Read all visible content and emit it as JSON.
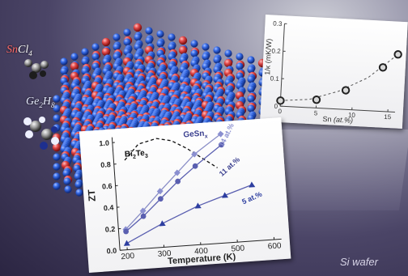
{
  "colors": {
    "si_atom": "#3469e6",
    "sn_atom": "#e24848",
    "zt_curve": "#5a5fb0",
    "bi2te3_curve": "#111111",
    "sncl4_text": "#ff6b6b",
    "ge2h8_text": "#e8ecff"
  },
  "precursors": {
    "sncl4": {
      "a": "Sn",
      "b": "Cl",
      "sub": "4"
    },
    "ge2h8": {
      "a": "Ge",
      "sub1": "2",
      "b": "H",
      "sub2": "8"
    }
  },
  "substrate_label": "Si wafer",
  "chart_data": [
    {
      "type": "line",
      "ylabel": "ZT",
      "xlabel": "Temperature (K)",
      "xticks": [
        200,
        300,
        400,
        500,
        600
      ],
      "yticks": [
        0.0,
        0.2,
        0.4,
        0.6,
        0.8,
        1.0
      ],
      "xlim": [
        180,
        620
      ],
      "ylim": [
        0,
        1.05
      ],
      "series": [
        {
          "name": "14 at.%",
          "marker": "diamond",
          "x": [
            200,
            250,
            300,
            350,
            400,
            475
          ],
          "y": [
            0.19,
            0.35,
            0.52,
            0.68,
            0.84,
            1.01
          ]
        },
        {
          "name": "11 at.%",
          "marker": "circle",
          "x": [
            200,
            250,
            300,
            350,
            400,
            475
          ],
          "y": [
            0.17,
            0.3,
            0.45,
            0.6,
            0.73,
            0.91
          ]
        },
        {
          "name": "5 at.%",
          "marker": "triangle",
          "x": [
            200,
            300,
            400,
            475,
            550
          ],
          "y": [
            0.06,
            0.22,
            0.36,
            0.44,
            0.52
          ]
        }
      ],
      "reference": {
        "name": "Bi2Te3",
        "base": "Bi",
        "sub1": "2",
        "mid": "Te",
        "sub2": "3",
        "style": "dashed",
        "x": [
          210,
          250,
          300,
          340,
          380,
          420,
          460
        ],
        "y": [
          0.83,
          0.97,
          1.01,
          0.98,
          0.9,
          0.8,
          0.7
        ]
      },
      "annotations": {
        "gesn": {
          "a": "GeSn",
          "sub": "x"
        },
        "a14": "14 at.%",
        "a11": "11 at.%",
        "a5": "5 at.%"
      }
    },
    {
      "type": "scatter",
      "ylabel": "1/κ (mK/W)",
      "xlabel_pre": "Sn",
      "xlabel_it": "(at.%)",
      "xticks": [
        0,
        5,
        10,
        15
      ],
      "yticks": [
        0,
        0.1,
        0.2,
        0.3
      ],
      "xlim": [
        0,
        16
      ],
      "ylim": [
        0,
        0.3
      ],
      "x": [
        0,
        5,
        9,
        14,
        16
      ],
      "y": [
        0.02,
        0.03,
        0.07,
        0.16,
        0.21
      ],
      "fit": {
        "style": "dashed",
        "x": [
          0,
          4,
          8,
          12,
          16
        ],
        "y": [
          0.02,
          0.03,
          0.065,
          0.12,
          0.21
        ]
      }
    }
  ]
}
